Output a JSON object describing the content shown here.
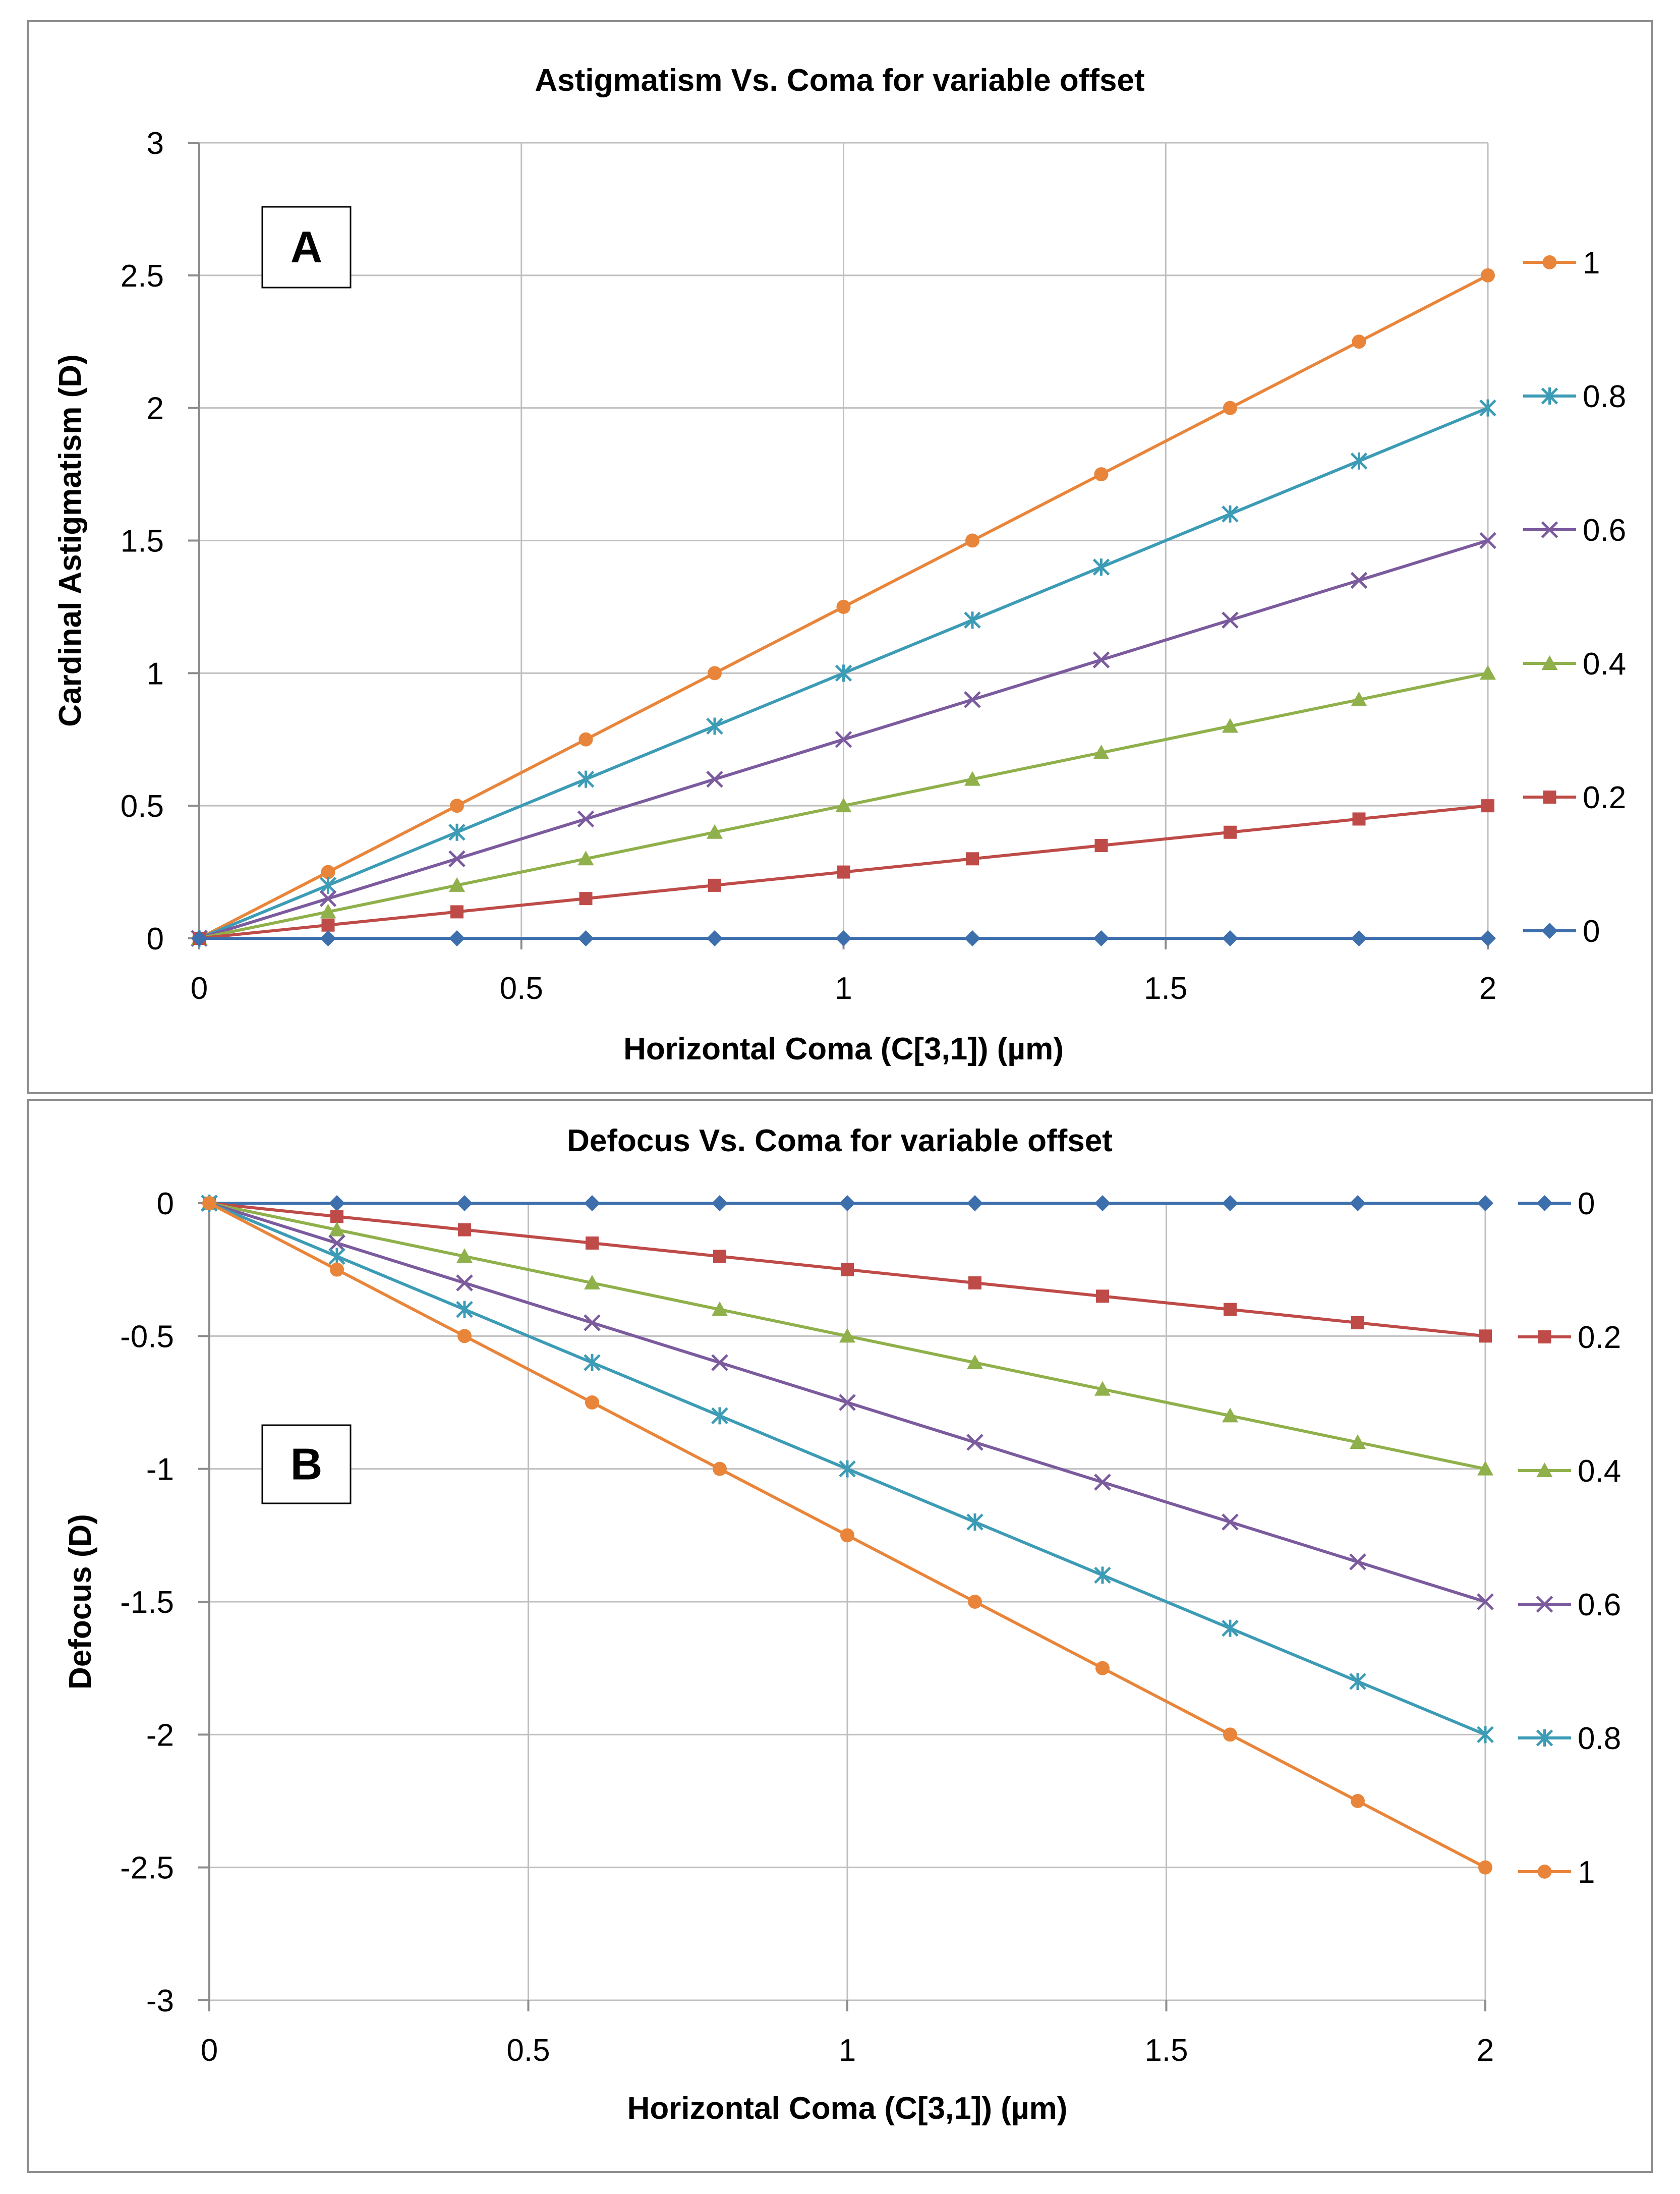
{
  "chart_data": [
    {
      "type": "line",
      "title": "Astigmatism Vs. Coma for variable offset",
      "panel_label": "A",
      "xlabel": "Horizontal Coma (C[3,1]) (µm)",
      "ylabel": "Cardinal Astigmatism (D)",
      "xlim": [
        0,
        2
      ],
      "ylim": [
        0,
        3
      ],
      "xticks": [
        "0",
        "0.5",
        "1",
        "1.5",
        "2"
      ],
      "yticks": [
        "0",
        "0.5",
        "1",
        "1.5",
        "2",
        "2.5",
        "3"
      ],
      "grid": true,
      "legend_position": "right",
      "x": [
        0,
        0.2,
        0.4,
        0.6,
        0.8,
        1.0,
        1.2,
        1.4,
        1.6,
        1.8,
        2.0
      ],
      "series": [
        {
          "name": "1",
          "color": "#E8853A",
          "marker": "circle",
          "values": [
            0,
            0.25,
            0.5,
            0.75,
            1.0,
            1.25,
            1.5,
            1.75,
            2.0,
            2.25,
            2.5
          ]
        },
        {
          "name": "0.8",
          "color": "#3C9BB5",
          "marker": "star",
          "values": [
            0,
            0.2,
            0.4,
            0.6,
            0.8,
            1.0,
            1.2,
            1.4,
            1.6,
            1.8,
            2.0
          ]
        },
        {
          "name": "0.6",
          "color": "#7B5A9E",
          "marker": "x",
          "values": [
            0,
            0.15,
            0.3,
            0.45,
            0.6,
            0.75,
            0.9,
            1.05,
            1.2,
            1.35,
            1.5
          ]
        },
        {
          "name": "0.4",
          "color": "#8FB04A",
          "marker": "triangle",
          "values": [
            0,
            0.1,
            0.2,
            0.3,
            0.4,
            0.5,
            0.6,
            0.7,
            0.8,
            0.9,
            1.0
          ]
        },
        {
          "name": "0.2",
          "color": "#BE4B48",
          "marker": "square",
          "values": [
            0,
            0.05,
            0.1,
            0.15,
            0.2,
            0.25,
            0.3,
            0.35,
            0.4,
            0.45,
            0.5
          ]
        },
        {
          "name": "0",
          "color": "#3E6FAD",
          "marker": "diamond",
          "values": [
            0,
            0,
            0,
            0,
            0,
            0,
            0,
            0,
            0,
            0,
            0
          ]
        }
      ]
    },
    {
      "type": "line",
      "title": "Defocus Vs. Coma for variable offset",
      "panel_label": "B",
      "xlabel": "Horizontal Coma (C[3,1]) (µm)",
      "ylabel": "Defocus (D)",
      "xlim": [
        0,
        2
      ],
      "ylim": [
        -3,
        0
      ],
      "xticks": [
        "0",
        "0.5",
        "1",
        "1.5",
        "2"
      ],
      "yticks": [
        "0",
        "-0.5",
        "-1",
        "-1.5",
        "-2",
        "-2.5",
        "-3"
      ],
      "grid": true,
      "legend_position": "right",
      "x": [
        0,
        0.2,
        0.4,
        0.6,
        0.8,
        1.0,
        1.2,
        1.4,
        1.6,
        1.8,
        2.0
      ],
      "series": [
        {
          "name": "0",
          "color": "#3E6FAD",
          "marker": "diamond",
          "values": [
            0,
            0,
            0,
            0,
            0,
            0,
            0,
            0,
            0,
            0,
            0
          ]
        },
        {
          "name": "0.2",
          "color": "#BE4B48",
          "marker": "square",
          "values": [
            0,
            -0.05,
            -0.1,
            -0.15,
            -0.2,
            -0.25,
            -0.3,
            -0.35,
            -0.4,
            -0.45,
            -0.5
          ]
        },
        {
          "name": "0.4",
          "color": "#8FB04A",
          "marker": "triangle",
          "values": [
            0,
            -0.1,
            -0.2,
            -0.3,
            -0.4,
            -0.5,
            -0.6,
            -0.7,
            -0.8,
            -0.9,
            -1.0
          ]
        },
        {
          "name": "0.6",
          "color": "#7B5A9E",
          "marker": "x",
          "values": [
            0,
            -0.15,
            -0.3,
            -0.45,
            -0.6,
            -0.75,
            -0.9,
            -1.05,
            -1.2,
            -1.35,
            -1.5
          ]
        },
        {
          "name": "0.8",
          "color": "#3C9BB5",
          "marker": "star",
          "values": [
            0,
            -0.2,
            -0.4,
            -0.6,
            -0.8,
            -1.0,
            -1.2,
            -1.4,
            -1.6,
            -1.8,
            -2.0
          ]
        },
        {
          "name": "1",
          "color": "#E8853A",
          "marker": "circle",
          "values": [
            0,
            -0.25,
            -0.5,
            -0.75,
            -1.0,
            -1.25,
            -1.5,
            -1.75,
            -2.0,
            -2.25,
            -2.5
          ]
        }
      ]
    }
  ]
}
